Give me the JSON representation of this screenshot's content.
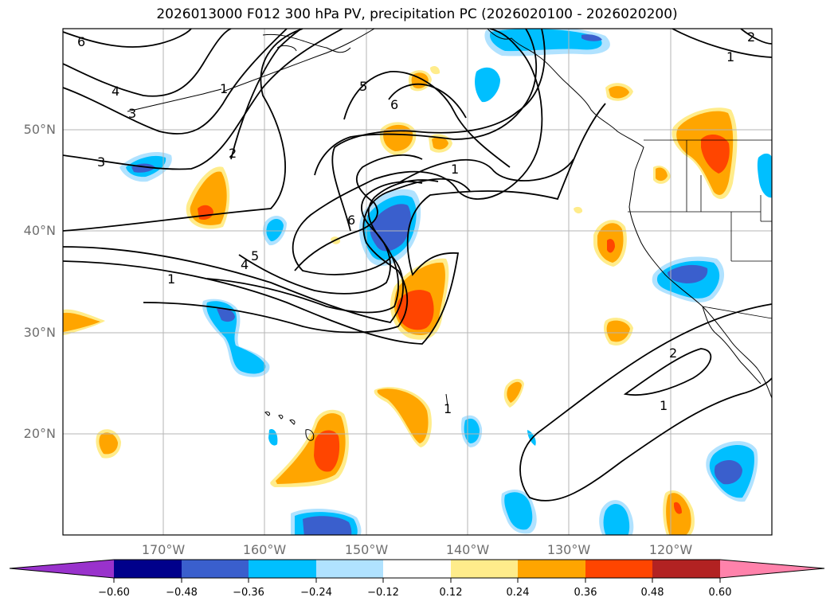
{
  "title": "2026013000 F012 300 hPa PV, precipitation PC (2026020100 - 2026020200)",
  "latitude_labels": [
    "50°N",
    "40°N",
    "30°N",
    "20°N"
  ],
  "longitude_labels": [
    "170°W",
    "160°W",
    "150°W",
    "140°W",
    "130°W",
    "120°W"
  ],
  "contour_labels": [
    "6",
    "4",
    "3",
    "5",
    "6",
    "2",
    "1",
    "3",
    "4",
    "5",
    "1",
    "6",
    "1",
    "2",
    "1",
    "2",
    "1",
    "1"
  ],
  "colorbar": {
    "tick_labels": [
      "−0.60",
      "−0.48",
      "−0.36",
      "−0.24",
      "−0.12",
      "0.12",
      "0.24",
      "0.36",
      "0.48",
      "0.60"
    ],
    "colors": [
      "#9932cc",
      "#00008b",
      "#3a5fcd",
      "#00bfff",
      "#b0e2ff",
      "#ffffff",
      "#ffec8b",
      "#ffa500",
      "#ff4500",
      "#b22222",
      "#ff82ab"
    ]
  }
}
